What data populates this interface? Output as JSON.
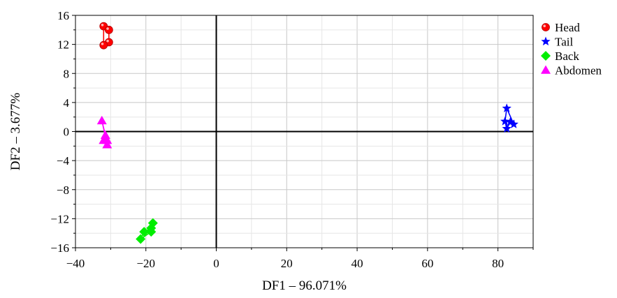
{
  "chart_data": {
    "type": "scatter",
    "xlabel": "DF1 – 96.071%",
    "ylabel": "DF2 – 3.677%",
    "xlim": [
      -40,
      90
    ],
    "ylim": [
      -16,
      16
    ],
    "xticks": [
      -40,
      -20,
      0,
      20,
      40,
      60,
      80
    ],
    "yticks": [
      -16,
      -12,
      -8,
      -4,
      0,
      4,
      8,
      12,
      16
    ],
    "x_tick_labels": [
      "−40",
      "−20",
      "0",
      "20",
      "40",
      "60",
      "80"
    ],
    "y_tick_labels": [
      "−16",
      "−12",
      "−8",
      "−4",
      "0",
      "4",
      "8",
      "12",
      "16"
    ],
    "grid": true,
    "legend_position": "top-right",
    "series": [
      {
        "name": "Head",
        "marker": "circle",
        "color": "#ff0000",
        "x": [
          -32.0,
          -30.5,
          -30.5,
          -32.0
        ],
        "y": [
          14.5,
          14.0,
          12.3,
          11.9
        ]
      },
      {
        "name": "Tail",
        "marker": "star",
        "color": "#0000ff",
        "x": [
          82.5,
          84.5,
          83.5,
          82.5,
          82.0
        ],
        "y": [
          3.2,
          1.0,
          1.3,
          0.4,
          1.4
        ]
      },
      {
        "name": "Back",
        "marker": "diamond",
        "color": "#00ee00",
        "x": [
          -21.5,
          -20.5,
          -18.5,
          -18.0,
          -18.5
        ],
        "y": [
          -14.8,
          -13.8,
          -13.3,
          -12.6,
          -13.8
        ]
      },
      {
        "name": "Abdomen",
        "marker": "triangle",
        "color": "#ff00ff",
        "x": [
          -32.5,
          -31.5,
          -31.0,
          -32.0,
          -31.0
        ],
        "y": [
          1.5,
          -0.5,
          -1.2,
          -1.2,
          -1.8
        ]
      }
    ]
  }
}
